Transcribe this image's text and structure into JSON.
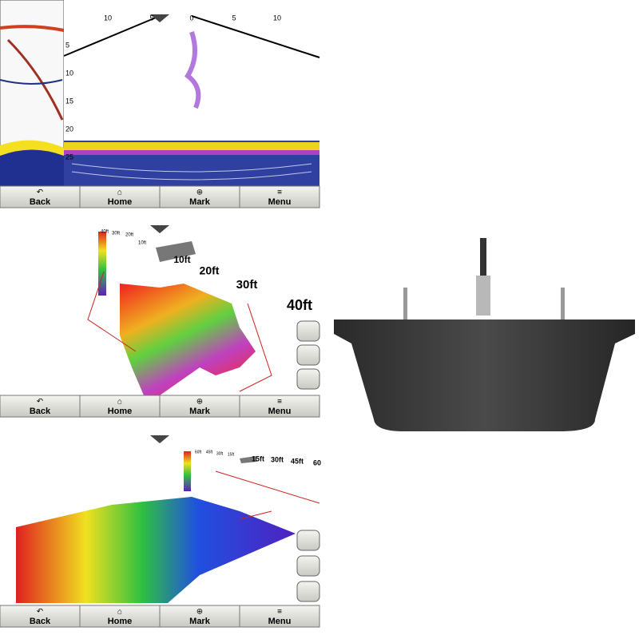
{
  "panels": [
    {
      "top_scale": [
        "10",
        "5",
        "0",
        "5",
        "10"
      ],
      "depth_scale": [
        "5",
        "10",
        "15",
        "20",
        "25"
      ],
      "buttons": [
        "Back",
        "Home",
        "Mark",
        "Menu"
      ]
    },
    {
      "scale_labels": [
        "40ft",
        "30ft",
        "20ft",
        "10ft"
      ],
      "range_labels": [
        "10ft",
        "20ft",
        "30ft",
        "40ft"
      ],
      "buttons": [
        "Back",
        "Home",
        "Mark",
        "Menu"
      ]
    },
    {
      "scale_labels": [
        "60ft",
        "45ft",
        "30ft",
        "15ft"
      ],
      "range_labels": [
        "15ft",
        "30ft",
        "45ft",
        "60"
      ],
      "buttons": [
        "Back",
        "Home",
        "Mark",
        "Menu"
      ]
    }
  ]
}
